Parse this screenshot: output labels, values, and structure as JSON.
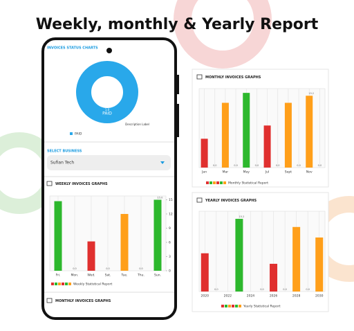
{
  "title": "Weekly, monthly & Yearly Report",
  "phone": {
    "status_heading": "INVOICES STATUS CHARTS",
    "donut": {
      "type": "pie",
      "categories": [
        "PAID"
      ],
      "values": [
        1.0
      ],
      "value_labels": [
        "1.0"
      ],
      "colors": [
        "#29a8ea"
      ],
      "description": "Description Label"
    },
    "select_label": "SELECT BUSINESS",
    "business": "Sufian Tech",
    "weekly": {
      "type": "bar",
      "heading": "WEEKLY INVOICES GRAPHS",
      "categories": [
        "Fri.",
        "Mon.",
        "Wed.",
        "Sat.",
        "Tue.",
        "Thu.",
        "Sun."
      ],
      "values": [
        14.7,
        0,
        6.2,
        0,
        12,
        0,
        15
      ],
      "value_labels": [
        null,
        "0.0",
        null,
        "0.0",
        null,
        "0.0",
        "15.0"
      ],
      "colors": [
        "#2db82d",
        "#2db82d",
        "#e0302f",
        "#e0302f",
        "#ff9f1a",
        "#ff9f1a",
        "#2db82d"
      ],
      "ylim": [
        0,
        15.8
      ],
      "yticks": [
        0,
        3,
        6,
        9,
        12,
        15
      ],
      "grid": true,
      "legend": "Weekly Statistical Report"
    },
    "monthly_heading": "MONTHLY INVOICES GRAPHS"
  },
  "monthly": {
    "type": "bar",
    "heading": "MONTHLY INVOICES GRAPHS",
    "categories": [
      "Jan",
      null,
      "Mar",
      null,
      "May",
      null,
      "Jul",
      null,
      "Sept",
      null,
      "Nov",
      null
    ],
    "values": [
      6.1,
      0,
      13.7,
      0,
      15.8,
      0,
      8.9,
      0,
      13.7,
      0,
      15.2,
      0
    ],
    "value_labels": [
      null,
      "0.0",
      null,
      "0.0",
      null,
      "0.0",
      null,
      "0.0",
      null,
      "0.0",
      "15.2",
      "0.0"
    ],
    "colors": [
      "#e0302f",
      "#e0302f",
      "#ff9f1a",
      "#ff9f1a",
      "#2db82d",
      "#2db82d",
      "#e0302f",
      "#e0302f",
      "#ff9f1a",
      "#ff9f1a",
      "#ff9f1a",
      "#ff9f1a"
    ],
    "ylim": [
      0,
      16.7
    ],
    "grid": true,
    "legend": "Monthly Statistical Report"
  },
  "yearly": {
    "type": "bar",
    "heading": "YEARLY INVOICES GRAPHS",
    "categories": [
      "2020",
      null,
      "2022",
      null,
      "2024",
      null,
      "2026",
      null,
      "2028",
      null,
      "2030"
    ],
    "values": [
      8.0,
      0,
      0,
      15.2,
      0,
      0,
      5.8,
      0,
      13.5,
      0,
      11.3
    ],
    "value_labels": [
      null,
      "0.0",
      null,
      "15.2",
      null,
      "0.0",
      null,
      "0.0",
      null,
      "0.0",
      null
    ],
    "colors": [
      "#e0302f",
      "#e0302f",
      "#2db82d",
      "#2db82d",
      "#2db82d",
      "#e0302f",
      "#e0302f",
      "#ff9f1a",
      "#ff9f1a",
      "#ff9f1a",
      "#ff9f1a"
    ],
    "ylim": [
      0,
      16.8
    ],
    "grid": true,
    "legend": "Yearly Statistical Report"
  }
}
